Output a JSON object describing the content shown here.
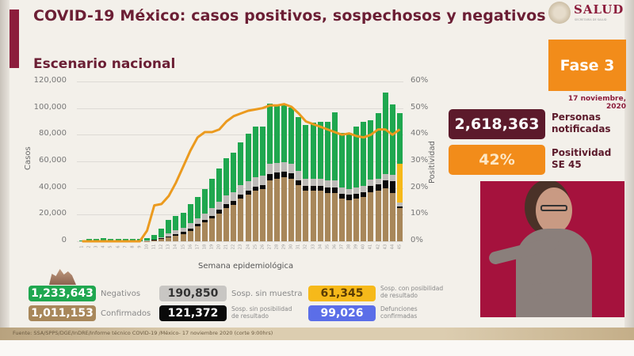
{
  "header": {
    "title": "COVID-19 México: casos positivos, sospechosos y negativos",
    "subtitle": "Escenario nacional",
    "logo_name": "SALUD",
    "logo_sub": "SECRETARÍA DE SALUD"
  },
  "fase": {
    "label": "Fase 3",
    "date": "17 noviembre, 2020"
  },
  "kpis": {
    "notificadas_value": "2,618,363",
    "notificadas_label_1": "Personas",
    "notificadas_label_2": "notificadas",
    "positividad_value": "42%",
    "positividad_label_1": "Positividad",
    "positividad_label_2": "SE 45"
  },
  "legend": {
    "negativos_value": "1,233,643",
    "negativos_label": "Negativos",
    "confirmados_value": "1,011,153",
    "confirmados_label": "Confirmados",
    "sin_muestra_value": "190,850",
    "sin_muestra_label": "Sosp. sin muestra",
    "sin_posibilidad_value": "121,372",
    "sin_posibilidad_label_1": "Sosp. sin posibilidad",
    "sin_posibilidad_label_2": "de resultado",
    "con_posibilidad_value": "61,345",
    "con_posibilidad_label_1": "Sosp. con posibilidad",
    "con_posibilidad_label_2": "de resultado",
    "defunciones_value": "99,026",
    "defunciones_label_1": "Defunciones",
    "defunciones_label_2": "confirmadas"
  },
  "footer": {
    "source": "Fuente: SSA/SPPS/DGE/InDRE/Informe técnico COVID-19 /México- 17 noviembre 2020 (corte 9:00hrs)"
  },
  "colors": {
    "negativos": "#1fa74f",
    "confirmados": "#a8875a",
    "sin_muestra": "#bdbbb8",
    "sin_posibilidad": "#0a0a0a",
    "con_posibilidad": "#f6b91a",
    "defunciones": "#5b6ee8",
    "positividad_line": "#eb9a1e",
    "title": "#6b1e34",
    "fase": "#f28c1a",
    "notificadas": "#5c1a2b"
  },
  "chart_data": {
    "type": "bar",
    "title": "Escenario nacional",
    "xlabel": "Semana epidemiológica",
    "ylabel": "Casos",
    "ylabel_right": "Positividad",
    "ylim": [
      0,
      120000
    ],
    "ylim_right": [
      0,
      60
    ],
    "yticks": [
      "0",
      "20,000",
      "40,000",
      "60,000",
      "80,000",
      "100,000",
      "120,000"
    ],
    "yticks_right": [
      "0%",
      "10%",
      "20%",
      "30%",
      "40%",
      "50%",
      "60%"
    ],
    "grid": true,
    "stacked": true,
    "categories": [
      "1",
      "2",
      "3",
      "4",
      "5",
      "6",
      "7",
      "8",
      "9",
      "10",
      "11",
      "12",
      "13",
      "14",
      "15",
      "16",
      "17",
      "18",
      "19",
      "20",
      "21",
      "22",
      "23",
      "24",
      "25",
      "26",
      "27",
      "28",
      "29",
      "30",
      "31",
      "32",
      "33",
      "34",
      "35",
      "36",
      "37",
      "38",
      "39",
      "40",
      "41",
      "42",
      "43",
      "44",
      "45"
    ],
    "series": [
      {
        "name": "Confirmados",
        "values": [
          0,
          0,
          0,
          0,
          0,
          0,
          0,
          0,
          0,
          200,
          700,
          1600,
          2800,
          4000,
          5500,
          8000,
          11000,
          14000,
          17000,
          21000,
          25000,
          27500,
          32000,
          35000,
          38000,
          39000,
          46000,
          47000,
          48000,
          47000,
          42000,
          38000,
          38000,
          38000,
          36000,
          36000,
          32000,
          31000,
          32000,
          33000,
          37000,
          38000,
          40000,
          36000,
          25000
        ]
      },
      {
        "name": "Sosp. sin posibilidad de resultado",
        "values": [
          0,
          0,
          0,
          0,
          0,
          0,
          0,
          0,
          0,
          100,
          300,
          600,
          1000,
          1200,
          1400,
          1600,
          1800,
          2000,
          2200,
          2500,
          2800,
          2800,
          3000,
          3000,
          3000,
          3100,
          4600,
          4500,
          4200,
          4000,
          3900,
          3600,
          3600,
          3600,
          4200,
          4200,
          3800,
          3900,
          3800,
          4000,
          4600,
          4600,
          5800,
          9000,
          1200
        ]
      },
      {
        "name": "Sosp. sin muestra",
        "values": [
          0,
          0,
          0,
          0,
          0,
          0,
          0,
          0,
          0,
          200,
          500,
          1000,
          2000,
          3000,
          3500,
          4200,
          4500,
          5000,
          5500,
          6000,
          6500,
          6500,
          7000,
          7000,
          7000,
          7200,
          7500,
          7400,
          7400,
          7400,
          7200,
          5500,
          5400,
          5400,
          5400,
          5400,
          4500,
          4400,
          4500,
          4500,
          4600,
          4600,
          4800,
          4800,
          3000
        ]
      },
      {
        "name": "Sosp. con posibilidad de resultado",
        "values": [
          0,
          0,
          0,
          0,
          0,
          0,
          0,
          0,
          0,
          0,
          0,
          0,
          0,
          0,
          0,
          0,
          0,
          0,
          0,
          0,
          0,
          0,
          0,
          0,
          0,
          0,
          0,
          0,
          0,
          0,
          0,
          0,
          0,
          0,
          0,
          0,
          0,
          0,
          0,
          0,
          0,
          0,
          0,
          0,
          29000
        ]
      },
      {
        "name": "Negativos",
        "values": [
          800,
          1600,
          1800,
          2200,
          1800,
          1800,
          1800,
          1600,
          1500,
          2000,
          3000,
          6500,
          10000,
          11000,
          11000,
          14000,
          16000,
          18000,
          22000,
          25000,
          28000,
          30000,
          32000,
          36000,
          38000,
          37000,
          45000,
          44000,
          43000,
          42000,
          40000,
          40000,
          42000,
          43000,
          44000,
          51000,
          41000,
          41000,
          46000,
          48000,
          45000,
          49000,
          61000,
          53000,
          38000
        ]
      },
      {
        "name": "Positividad (%)",
        "axis": "right",
        "type": "line",
        "values": [
          0,
          0,
          0,
          0,
          0,
          0,
          0,
          0,
          0,
          4,
          13.5,
          14,
          17,
          22,
          28,
          34,
          39,
          41,
          41,
          42,
          45,
          47,
          48,
          49,
          49.5,
          50,
          51,
          51,
          51.5,
          50.5,
          48,
          45,
          44,
          43,
          42,
          41,
          40,
          40.5,
          39.5,
          39,
          40,
          42,
          42,
          40,
          42
        ]
      }
    ]
  }
}
